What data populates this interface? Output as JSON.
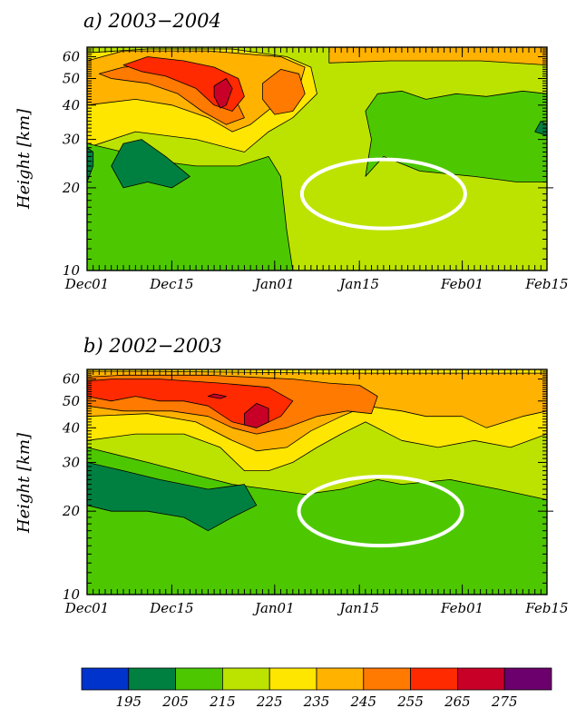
{
  "chart_data": [
    {
      "type": "heatmap",
      "title": "a)  2003−2004",
      "ylabel": "Height [km]",
      "x_tick_labels": [
        "Dec01",
        "Dec15",
        "Jan01",
        "Jan15",
        "Feb01",
        "Feb15"
      ],
      "y_ticks": [
        10,
        20,
        30,
        40,
        50,
        60
      ],
      "ylim": [
        10,
        65
      ],
      "yscale": "log",
      "xlim_days": [
        0,
        76
      ],
      "annotation": {
        "shape": "ellipse",
        "center": [
          49,
          19
        ],
        "x_halfwidth": 13.5
      },
      "regions": [
        {
          "value": 225,
          "color": "#bce300",
          "points": [
            [
              0,
              10
            ],
            [
              76,
              10
            ],
            [
              76,
              65
            ],
            [
              0,
              65
            ]
          ]
        },
        {
          "value": 235,
          "color": "#ffe600",
          "points": [
            [
              0,
              28
            ],
            [
              8,
              32
            ],
            [
              18,
              30
            ],
            [
              26,
              27
            ],
            [
              30,
              32
            ],
            [
              34,
              36
            ],
            [
              38,
              44
            ],
            [
              37,
              55
            ],
            [
              33,
              60
            ],
            [
              24,
              64
            ],
            [
              10,
              64
            ],
            [
              0,
              62
            ]
          ]
        },
        {
          "value": 245,
          "color": "#ffb200",
          "points": [
            [
              0,
              40
            ],
            [
              8,
              42
            ],
            [
              14,
              40
            ],
            [
              20,
              36
            ],
            [
              24,
              32
            ],
            [
              27,
              34
            ],
            [
              31,
              40
            ],
            [
              35,
              46
            ],
            [
              36,
              55
            ],
            [
              32,
              60
            ],
            [
              20,
              63
            ],
            [
              6,
              63
            ],
            [
              0,
              58
            ]
          ]
        },
        {
          "value": 245,
          "color": "#ffb200",
          "points": [
            [
              40,
              57
            ],
            [
              50,
              58
            ],
            [
              65,
              58
            ],
            [
              76,
              56
            ],
            [
              76,
              65
            ],
            [
              40,
              65
            ]
          ]
        },
        {
          "value": 255,
          "color": "#ff7a00",
          "points": [
            [
              2,
              52
            ],
            [
              6,
              55
            ],
            [
              12,
              56
            ],
            [
              18,
              52
            ],
            [
              22,
              44
            ],
            [
              25,
              40
            ],
            [
              26,
              36
            ],
            [
              23,
              34
            ],
            [
              19,
              38
            ],
            [
              15,
              44
            ],
            [
              10,
              48
            ],
            [
              4,
              50
            ]
          ]
        },
        {
          "value": 255,
          "color": "#ff7a00",
          "points": [
            [
              29,
              48
            ],
            [
              32,
              54
            ],
            [
              35,
              52
            ],
            [
              36,
              44
            ],
            [
              34,
              38
            ],
            [
              31,
              37
            ],
            [
              29,
              42
            ]
          ]
        },
        {
          "value": 265,
          "color": "#ff2a00",
          "points": [
            [
              6,
              56
            ],
            [
              10,
              60
            ],
            [
              16,
              58
            ],
            [
              21,
              55
            ],
            [
              25,
              50
            ],
            [
              26,
              43
            ],
            [
              24,
              38
            ],
            [
              21,
              40
            ],
            [
              18,
              46
            ],
            [
              13,
              51
            ],
            [
              9,
              53
            ]
          ]
        },
        {
          "value": 275,
          "color": "#c80028",
          "points": [
            [
              21,
              47
            ],
            [
              23,
              50
            ],
            [
              24,
              46
            ],
            [
              23,
              40
            ],
            [
              22,
              39
            ],
            [
              21,
              43
            ]
          ]
        },
        {
          "value": 215,
          "color": "#4dc800",
          "points": [
            [
              0,
              10
            ],
            [
              34,
              10
            ],
            [
              33,
              14
            ],
            [
              32,
              22
            ],
            [
              30,
              26
            ],
            [
              25,
              24
            ],
            [
              18,
              24
            ],
            [
              12,
              25
            ],
            [
              6,
              27
            ],
            [
              0,
              29
            ]
          ]
        },
        {
          "value": 215,
          "color": "#4dc800",
          "points": [
            [
              46,
              22
            ],
            [
              49,
              26
            ],
            [
              55,
              23
            ],
            [
              64,
              22
            ],
            [
              71,
              21
            ],
            [
              76,
              21
            ],
            [
              76,
              44
            ],
            [
              72,
              45
            ],
            [
              66,
              43
            ],
            [
              61,
              44
            ],
            [
              56,
              42
            ],
            [
              52,
              45
            ],
            [
              48,
              44
            ],
            [
              46,
              38
            ],
            [
              47,
              30
            ]
          ]
        },
        {
          "value": 205,
          "color": "#008040",
          "points": [
            [
              4,
              24
            ],
            [
              6,
              29
            ],
            [
              9,
              30
            ],
            [
              13,
              26
            ],
            [
              17,
              22
            ],
            [
              14,
              20
            ],
            [
              10,
              21
            ],
            [
              6,
              20
            ]
          ]
        },
        {
          "value": 205,
          "color": "#008040",
          "points": [
            [
              0,
              21
            ],
            [
              1,
              24
            ],
            [
              1,
              27
            ],
            [
              0,
              28
            ]
          ]
        },
        {
          "value": 205,
          "color": "#008040",
          "points": [
            [
              74,
              32
            ],
            [
              75,
              35
            ],
            [
              76,
              34
            ],
            [
              76,
              31
            ]
          ]
        }
      ]
    },
    {
      "type": "heatmap",
      "title": "b)  2002−2003",
      "ylabel": "Height [km]",
      "x_tick_labels": [
        "Dec01",
        "Dec15",
        "Jan01",
        "Jan15",
        "Feb01",
        "Feb15"
      ],
      "y_ticks": [
        10,
        20,
        30,
        40,
        50,
        60
      ],
      "ylim": [
        10,
        65
      ],
      "yscale": "log",
      "xlim_days": [
        0,
        76
      ],
      "annotation": {
        "shape": "ellipse",
        "center": [
          48.5,
          20
        ],
        "x_halfwidth": 13.5
      },
      "regions": [
        {
          "value": 225,
          "color": "#bce300",
          "points": [
            [
              0,
              10
            ],
            [
              76,
              10
            ],
            [
              76,
              65
            ],
            [
              0,
              65
            ]
          ]
        },
        {
          "value": 235,
          "color": "#ffe600",
          "points": [
            [
              0,
              36
            ],
            [
              8,
              38
            ],
            [
              16,
              38
            ],
            [
              22,
              34
            ],
            [
              26,
              28
            ],
            [
              30,
              28
            ],
            [
              34,
              30
            ],
            [
              38,
              34
            ],
            [
              42,
              38
            ],
            [
              46,
              42
            ],
            [
              52,
              36
            ],
            [
              58,
              34
            ],
            [
              64,
              36
            ],
            [
              70,
              34
            ],
            [
              76,
              38
            ],
            [
              76,
              65
            ],
            [
              0,
              65
            ]
          ]
        },
        {
          "value": 245,
          "color": "#ffb200",
          "points": [
            [
              0,
              44
            ],
            [
              10,
              45
            ],
            [
              18,
              42
            ],
            [
              24,
              36
            ],
            [
              28,
              33
            ],
            [
              33,
              34
            ],
            [
              37,
              39
            ],
            [
              42,
              44
            ],
            [
              46,
              48
            ],
            [
              52,
              46
            ],
            [
              56,
              44
            ],
            [
              62,
              44
            ],
            [
              66,
              40
            ],
            [
              72,
              44
            ],
            [
              76,
              46
            ],
            [
              76,
              63
            ],
            [
              50,
              63
            ],
            [
              40,
              63
            ],
            [
              10,
              64
            ],
            [
              0,
              64
            ]
          ]
        },
        {
          "value": 255,
          "color": "#ff7a00",
          "points": [
            [
              0,
              48
            ],
            [
              6,
              46
            ],
            [
              14,
              46
            ],
            [
              20,
              44
            ],
            [
              24,
              40
            ],
            [
              28,
              38
            ],
            [
              33,
              40
            ],
            [
              38,
              44
            ],
            [
              43,
              46
            ],
            [
              47,
              45
            ],
            [
              48,
              52
            ],
            [
              45,
              57
            ],
            [
              40,
              58
            ],
            [
              34,
              60
            ],
            [
              20,
              62
            ],
            [
              6,
              62
            ],
            [
              0,
              61
            ]
          ]
        },
        {
          "value": 265,
          "color": "#ff2a00",
          "points": [
            [
              0,
              52
            ],
            [
              4,
              50
            ],
            [
              8,
              52
            ],
            [
              12,
              50
            ],
            [
              16,
              50
            ],
            [
              20,
              48
            ],
            [
              24,
              42
            ],
            [
              28,
              40
            ],
            [
              32,
              44
            ],
            [
              34,
              50
            ],
            [
              30,
              56
            ],
            [
              22,
              58
            ],
            [
              12,
              60
            ],
            [
              4,
              60
            ],
            [
              0,
              59
            ]
          ]
        },
        {
          "value": 275,
          "color": "#c80028",
          "points": [
            [
              26,
              45
            ],
            [
              28,
              49
            ],
            [
              30,
              47
            ],
            [
              30,
              42
            ],
            [
              28,
              40
            ],
            [
              26,
              41
            ]
          ]
        },
        {
          "value": 275,
          "color": "#c80028",
          "points": [
            [
              20,
              52
            ],
            [
              21,
              53
            ],
            [
              23,
              52
            ],
            [
              22,
              51
            ]
          ]
        },
        {
          "value": 215,
          "color": "#4dc800",
          "points": [
            [
              0,
              10
            ],
            [
              76,
              10
            ],
            [
              76,
              22
            ],
            [
              68,
              24
            ],
            [
              60,
              26
            ],
            [
              52,
              25
            ],
            [
              48,
              26
            ],
            [
              42,
              24
            ],
            [
              36,
              23
            ],
            [
              30,
              24
            ],
            [
              24,
              25
            ],
            [
              18,
              27
            ],
            [
              10,
              30
            ],
            [
              0,
              34
            ]
          ]
        },
        {
          "value": 205,
          "color": "#008040",
          "points": [
            [
              0,
              21
            ],
            [
              4,
              20
            ],
            [
              10,
              20
            ],
            [
              16,
              19
            ],
            [
              20,
              17
            ],
            [
              24,
              19
            ],
            [
              28,
              21
            ],
            [
              26,
              25
            ],
            [
              20,
              24
            ],
            [
              12,
              26
            ],
            [
              6,
              28
            ],
            [
              0,
              30
            ]
          ]
        }
      ]
    }
  ],
  "colorbar": {
    "ticks": [
      195,
      205,
      215,
      225,
      235,
      245,
      255,
      265,
      275
    ],
    "colors": [
      "#0033cc",
      "#008040",
      "#4dc800",
      "#bce300",
      "#ffe600",
      "#ffb200",
      "#ff7a00",
      "#ff2a00",
      "#c80028",
      "#6c006c"
    ]
  }
}
